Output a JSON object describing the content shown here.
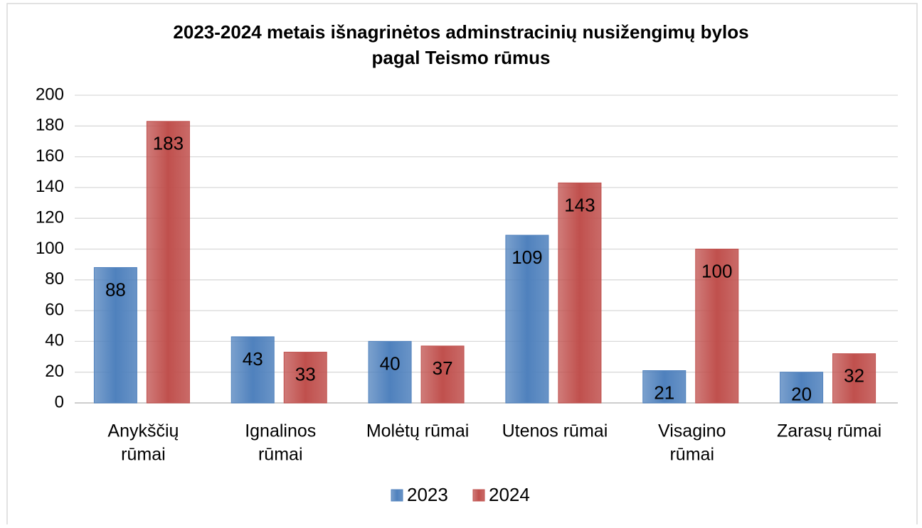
{
  "chart_data": {
    "type": "bar",
    "title": [
      "2023-2024 metais išnagrinėtos adminstracinių nusižengimų bylos",
      "pagal Teismo rūmus"
    ],
    "categories": [
      [
        "Anykščių",
        "rūmai"
      ],
      [
        "Ignalinos",
        "rūmai"
      ],
      [
        "Molėtų rūmai"
      ],
      [
        "Utenos rūmai"
      ],
      [
        "Visagino",
        "rūmai"
      ],
      [
        "Zarasų rūmai"
      ]
    ],
    "series": [
      {
        "name": "2023",
        "color": "#4f81bd",
        "values": [
          88,
          43,
          40,
          109,
          21,
          20
        ]
      },
      {
        "name": "2024",
        "color": "#c0504d",
        "values": [
          183,
          33,
          37,
          143,
          100,
          32
        ]
      }
    ],
    "ylim": [
      0,
      200
    ],
    "yticks": [
      0,
      20,
      40,
      60,
      80,
      100,
      120,
      140,
      160,
      180,
      200
    ],
    "grid": true,
    "legend": "bottom"
  }
}
